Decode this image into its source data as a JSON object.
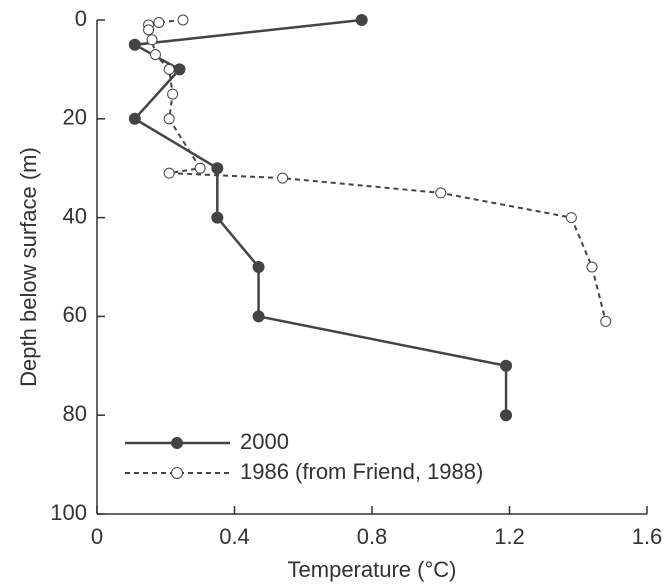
{
  "chart_data": {
    "type": "line",
    "x_label": "Temperature (°C)",
    "y_label": "Depth below surface (m)",
    "xlim": [
      0,
      1.6
    ],
    "xticks": [
      0,
      0.4,
      0.8,
      1.2,
      1.6
    ],
    "ylim": [
      100,
      0
    ],
    "yticks": [
      0,
      20,
      40,
      60,
      80,
      100
    ],
    "legend": "lower left",
    "series": [
      {
        "name": "2000",
        "color": "#444444",
        "dashed": false,
        "marker": "filled",
        "x": [
          0.77,
          0.11,
          0.24,
          0.11,
          0.35,
          0.35,
          0.47,
          0.47,
          1.19,
          1.19
        ],
        "values": [
          0,
          5,
          10,
          20,
          30,
          40,
          50,
          60,
          70,
          80
        ]
      },
      {
        "name": "1986 (from Friend, 1988)",
        "color": "#444444",
        "dashed": true,
        "marker": "open",
        "x": [
          0.25,
          0.18,
          0.15,
          0.15,
          0.16,
          0.17,
          0.21,
          0.22,
          0.21,
          0.3,
          0.21,
          0.54,
          1.0,
          1.38,
          1.44,
          1.48
        ],
        "values": [
          0,
          0.5,
          1,
          2,
          4,
          7,
          10,
          15,
          20,
          30,
          31,
          32,
          35,
          40,
          50,
          61
        ]
      }
    ]
  }
}
